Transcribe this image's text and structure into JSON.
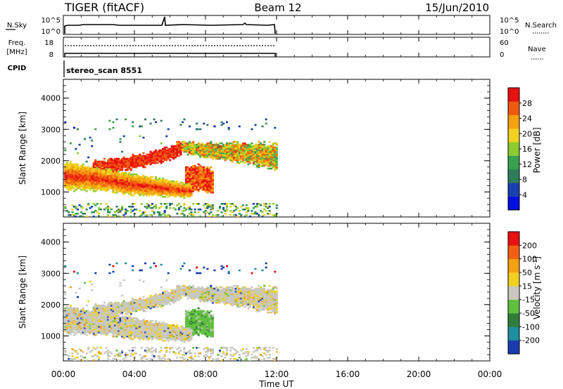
{
  "header": {
    "title": "TIGER (fitACF)",
    "beam": "Beam 12",
    "date": "15/Jun/2010"
  },
  "panels": {
    "nsky_label": "N.Sky",
    "nsearch_label": "N.Search",
    "nsky_ticks": [
      "10^5",
      "10^0"
    ],
    "nsearch_ticks": [
      "10^5",
      "10^0"
    ],
    "freq_label_1": "Freq.",
    "freq_label_2": "[MHz]",
    "freq_ticks": [
      "18",
      "8"
    ],
    "nave_label": "Nave",
    "nave_ticks": [
      "60",
      "0"
    ],
    "cpid_label": "CPID",
    "cpid_value": "stereo_scan 8551"
  },
  "chart_data": [
    {
      "type": "heatmap",
      "name_panel": "power",
      "ylabel": "Slant Range [km]",
      "ylim": [
        200,
        4600
      ],
      "yticks": [
        "4000",
        "3000",
        "2000",
        "1000"
      ],
      "colorbar_label": "Power [dB]",
      "colorbar_ticks": [
        "28",
        "24",
        "20",
        "16",
        "12",
        "8",
        "4"
      ],
      "colorscale": [
        "#0010e0",
        "#1a40b0",
        "#2e7d5a",
        "#38a050",
        "#8ccc30",
        "#f0d020",
        "#f7a010",
        "#f05a10",
        "#e81010"
      ],
      "data_extent_time_ut": [
        "00:00",
        "12:00"
      ]
    },
    {
      "type": "heatmap",
      "name_panel": "velocity",
      "ylabel": "Slant Range [km]",
      "ylim": [
        200,
        4600
      ],
      "yticks": [
        "4000",
        "3000",
        "2000",
        "1000"
      ],
      "colorbar_label_parts": [
        "Velocity [m s",
        "-1",
        "]"
      ],
      "colorbar_ticks": [
        "200",
        "100",
        "50",
        "15",
        "-15",
        "-50",
        "-100",
        "-200"
      ],
      "colorscale": [
        "#1a3cb0",
        "#1f8fa0",
        "#2e7d3a",
        "#60c040",
        "#c8c8c0",
        "#f0d020",
        "#f5a010",
        "#f06010",
        "#e81010"
      ],
      "data_extent_time_ut": [
        "00:00",
        "12:00"
      ]
    }
  ],
  "x_axis": {
    "label": "Time UT",
    "ticks": [
      "00:00",
      "04:00",
      "08:00",
      "12:00",
      "16:00",
      "20:00",
      "00:00"
    ],
    "range_hours": [
      0,
      24
    ]
  }
}
